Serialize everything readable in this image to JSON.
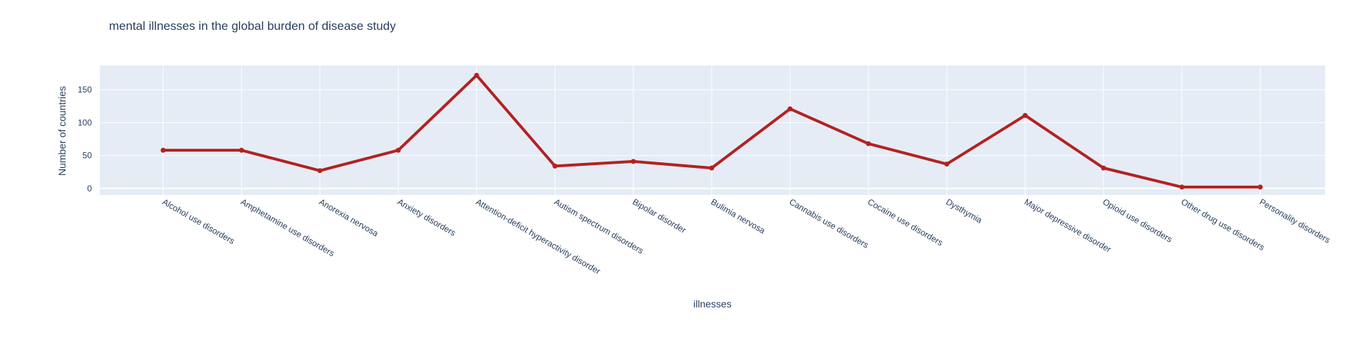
{
  "chart_data": {
    "type": "line",
    "title": "mental illnesses in the global burden of disease study",
    "xlabel": "illnesses",
    "ylabel": "Number of countries",
    "categories": [
      "Alcohol use disorders",
      "Amphetamine use disorders",
      "Anorexia nervosa",
      "Anxiety disorders",
      "Attention-deficit hyperactivity disorder",
      "Autism spectrum disorders",
      "Bipolar disorder",
      "Bulimia nervosa",
      "Cannabis use disorders",
      "Cocaine use disorders",
      "Dysthymia",
      "Major depressive disorder",
      "Opioid use disorders",
      "Other drug use disorders",
      "Personality disorders"
    ],
    "values": [
      58,
      58,
      27,
      58,
      172,
      34,
      41,
      31,
      121,
      68,
      37,
      111,
      31,
      2,
      2
    ],
    "ylim": [
      -10,
      187
    ],
    "yticks": [
      0,
      50,
      100,
      150
    ],
    "grid": true,
    "colors": {
      "line": "#b22222",
      "plot_bg": "#e5ecf6",
      "grid": "#ffffff",
      "text": "#2a3f5f"
    }
  }
}
